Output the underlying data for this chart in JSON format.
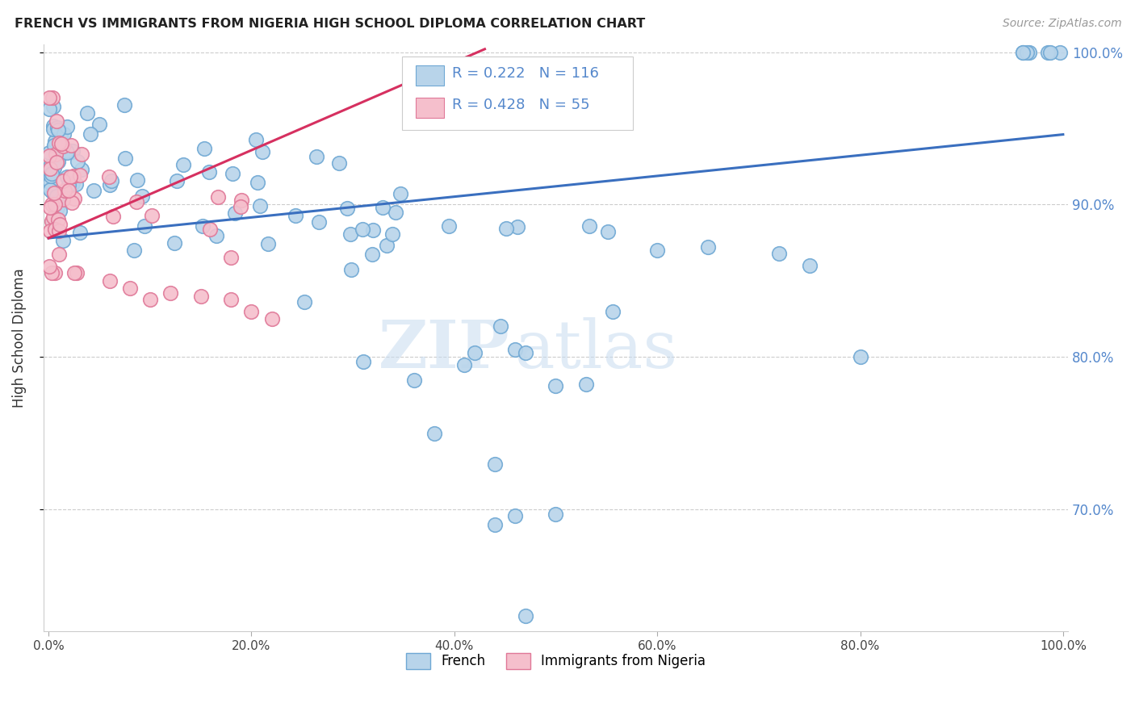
{
  "title": "FRENCH VS IMMIGRANTS FROM NIGERIA HIGH SCHOOL DIPLOMA CORRELATION CHART",
  "source": "Source: ZipAtlas.com",
  "ylabel": "High School Diploma",
  "legend_french": "French",
  "legend_nigeria": "Immigrants from Nigeria",
  "r_french": 0.222,
  "n_french": 116,
  "r_nigeria": 0.428,
  "n_nigeria": 55,
  "french_color": "#b8d4ea",
  "french_edge": "#6fa8d4",
  "nigeria_color": "#f5bfcc",
  "nigeria_edge": "#e07898",
  "trendline_french": "#3a6fbf",
  "trendline_nigeria": "#d63060",
  "watermark_zip": "ZIP",
  "watermark_atlas": "atlas",
  "background_color": "#ffffff",
  "ytick_color": "#5588cc",
  "xmin": 0.0,
  "xmax": 1.0,
  "ymin": 0.62,
  "ymax": 1.005,
  "yticks": [
    0.7,
    0.8,
    0.9,
    1.0
  ],
  "ytick_labels": [
    "70.0%",
    "80.0%",
    "90.0%",
    "100.0%"
  ],
  "xticks": [
    0.0,
    0.2,
    0.4,
    0.6,
    0.8,
    1.0
  ],
  "xtick_labels": [
    "0.0%",
    "20.0%",
    "40.0%",
    "60.0%",
    "80.0%",
    "100.0%"
  ],
  "french_trendline_x": [
    0.0,
    1.0
  ],
  "french_trendline_y": [
    0.878,
    0.946
  ],
  "nigeria_trendline_x": [
    0.0,
    0.43
  ],
  "nigeria_trendline_y": [
    0.878,
    1.002
  ]
}
